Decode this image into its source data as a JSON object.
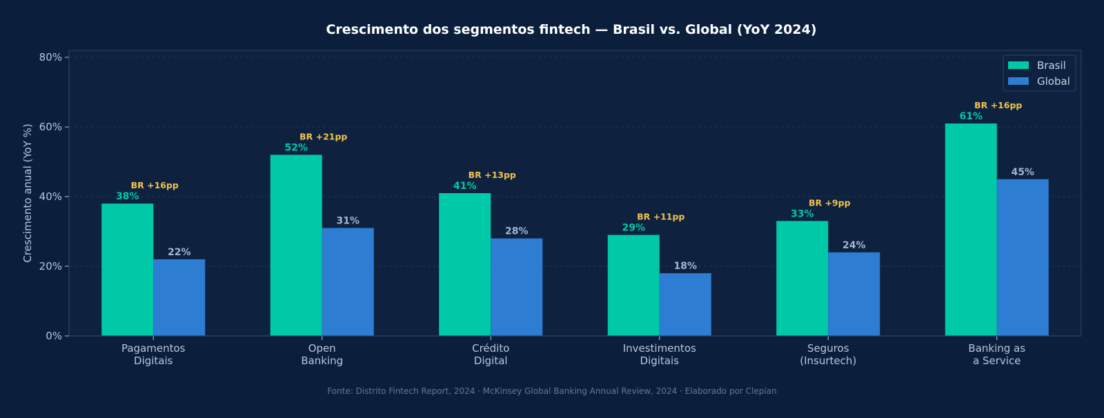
{
  "chart_data": {
    "type": "bar",
    "title": "Crescimento dos segmentos fintech — Brasil vs. Global (YoY 2024)",
    "ylabel": "Crescimento anual (YoY %)",
    "xlabel": "",
    "ylim": [
      0,
      82
    ],
    "yticks": [
      0,
      20,
      40,
      60,
      80
    ],
    "ytick_labels": [
      "0%",
      "20%",
      "40%",
      "60%",
      "80%"
    ],
    "grid": true,
    "legend_position": "top-right",
    "categories": [
      [
        "Pagamentos",
        "Digitais"
      ],
      [
        "Open",
        "Banking"
      ],
      [
        "Crédito",
        "Digital"
      ],
      [
        "Investimentos",
        "Digitais"
      ],
      [
        "Seguros",
        "(Insurtech)"
      ],
      [
        "Banking as",
        "a Service"
      ]
    ],
    "series": [
      {
        "name": "Brasil",
        "color": "#00c9a7",
        "values": [
          38,
          52,
          41,
          29,
          33,
          61
        ],
        "labels": [
          "38%",
          "52%",
          "41%",
          "29%",
          "33%",
          "61%"
        ]
      },
      {
        "name": "Global",
        "color": "#2d7dd2",
        "values": [
          22,
          31,
          28,
          18,
          24,
          45
        ],
        "labels": [
          "22%",
          "31%",
          "28%",
          "18%",
          "24%",
          "45%"
        ]
      }
    ],
    "annotations": [
      "BR +16pp",
      "BR +21pp",
      "BR +13pp",
      "BR +11pp",
      "BR +9pp",
      "BR +16pp"
    ],
    "source": "Fonte: Distrito Fintech Report, 2024 · McKinsey Global Banking Annual Review, 2024 · Elaborado por Clepian"
  },
  "colors": {
    "background": "#0b1f3d",
    "plot_background": "#0e2240",
    "axis": "#2a4468",
    "tick_text": "#b8c7dd",
    "title_text": "#ffffff",
    "global_label": "#9fb6d4",
    "annotation": "#f2c34b",
    "source_text": "#5e7a9e",
    "legend_text": "#c4d2e6"
  }
}
